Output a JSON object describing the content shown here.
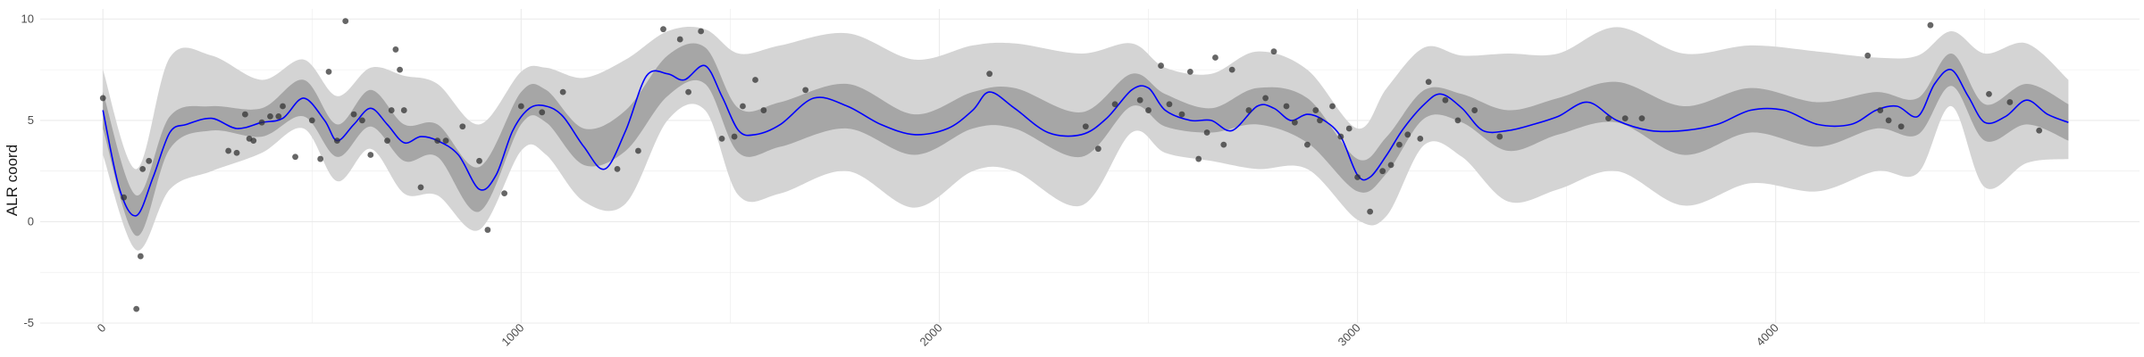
{
  "chart_data": {
    "type": "line",
    "title": "",
    "xlabel": "",
    "ylabel": "ALR coord",
    "xlim": [
      -150,
      4870
    ],
    "ylim": [
      -5,
      10.5
    ],
    "grid": true,
    "legend": "none",
    "x_ticks": [
      {
        "value": 0,
        "label": "0"
      },
      {
        "value": 1000,
        "label": "1000"
      },
      {
        "value": 2000,
        "label": "2000"
      },
      {
        "value": 3000,
        "label": "3000"
      },
      {
        "value": 4000,
        "label": "4000"
      }
    ],
    "y_ticks": [
      {
        "value": -5,
        "label": "-5"
      },
      {
        "value": 0,
        "label": "0"
      },
      {
        "value": 5,
        "label": "5"
      },
      {
        "value": 10,
        "label": "10"
      }
    ],
    "colors": {
      "mean_line": "#0000ff",
      "inner_band": "#a6a6a6",
      "outer_band": "#d4d4d4",
      "points": "#333333",
      "grid": "#ebebeb"
    },
    "series": [
      {
        "role": "mean",
        "x": [
          0,
          40,
          80,
          120,
          160,
          200,
          260,
          320,
          380,
          430,
          480,
          530,
          560,
          600,
          640,
          680,
          720,
          760,
          800,
          850,
          900,
          940,
          980,
          1020,
          1060,
          1100,
          1150,
          1200,
          1250,
          1300,
          1350,
          1390,
          1440,
          1480,
          1520,
          1560,
          1620,
          1700,
          1780,
          1860,
          1940,
          2020,
          2080,
          2120,
          2180,
          2260,
          2340,
          2400,
          2460,
          2500,
          2540,
          2600,
          2650,
          2700,
          2760,
          2800,
          2840,
          2880,
          2920,
          2960,
          3000,
          3030,
          3070,
          3110,
          3160,
          3200,
          3250,
          3300,
          3360,
          3420,
          3480,
          3550,
          3620,
          3700,
          3780,
          3860,
          3940,
          4020,
          4100,
          4180,
          4240,
          4290,
          4340,
          4380,
          4420,
          4460,
          4500,
          4550,
          4600,
          4650,
          4700
        ],
        "y": [
          5.5,
          1.6,
          0.3,
          2.2,
          4.4,
          4.8,
          5.1,
          4.6,
          4.9,
          5.1,
          6.1,
          5.0,
          4.0,
          4.8,
          5.6,
          4.8,
          3.9,
          4.2,
          4.0,
          3.3,
          1.6,
          2.3,
          4.5,
          5.6,
          5.7,
          5.2,
          3.7,
          2.6,
          4.5,
          7.2,
          7.3,
          7.0,
          7.7,
          6.2,
          4.5,
          4.3,
          4.8,
          6.1,
          5.7,
          4.8,
          4.3,
          4.6,
          5.5,
          6.4,
          5.6,
          4.4,
          4.3,
          5.1,
          6.5,
          6.6,
          5.5,
          5.0,
          5.0,
          4.5,
          5.7,
          5.6,
          5.0,
          5.3,
          5.0,
          4.2,
          2.3,
          2.2,
          3.3,
          4.6,
          5.8,
          6.3,
          5.6,
          4.5,
          4.5,
          4.8,
          5.2,
          5.9,
          5.0,
          4.5,
          4.5,
          4.8,
          5.5,
          5.5,
          4.8,
          4.8,
          5.5,
          5.7,
          5.2,
          6.8,
          7.5,
          6.2,
          4.9,
          5.2,
          6.0,
          5.3,
          4.9
        ]
      },
      {
        "role": "band-inner",
        "x": [
          0,
          80,
          160,
          260,
          380,
          480,
          560,
          640,
          720,
          800,
          900,
          1000,
          1060,
          1150,
          1250,
          1350,
          1440,
          1520,
          1620,
          1780,
          1940,
          2080,
          2180,
          2340,
          2460,
          2540,
          2650,
          2760,
          2880,
          3000,
          3070,
          3160,
          3250,
          3360,
          3480,
          3620,
          3780,
          3940,
          4100,
          4240,
          4340,
          4420,
          4500,
          4600,
          4700
        ],
        "upper": [
          6.4,
          1.3,
          5.2,
          5.7,
          5.6,
          7.0,
          4.8,
          6.5,
          4.8,
          4.8,
          2.7,
          6.4,
          6.5,
          4.6,
          5.5,
          8.2,
          8.6,
          5.6,
          5.9,
          6.8,
          5.3,
          6.4,
          6.6,
          5.4,
          7.3,
          6.3,
          5.6,
          6.6,
          6.1,
          3.1,
          4.2,
          6.5,
          6.3,
          5.5,
          6.1,
          6.9,
          5.7,
          6.6,
          5.9,
          6.4,
          6.1,
          8.3,
          5.8,
          6.8,
          5.8
        ],
        "lower": [
          4.6,
          -0.7,
          3.6,
          4.5,
          4.2,
          5.2,
          3.2,
          4.7,
          3.0,
          3.2,
          0.5,
          4.8,
          4.9,
          2.8,
          3.5,
          6.2,
          6.8,
          3.4,
          3.7,
          4.6,
          3.3,
          4.6,
          4.6,
          3.2,
          5.7,
          4.7,
          4.4,
          4.8,
          3.9,
          1.5,
          2.4,
          5.1,
          4.9,
          3.5,
          4.3,
          4.9,
          3.3,
          4.4,
          3.7,
          4.6,
          4.3,
          6.7,
          4.0,
          4.8,
          4.0
        ]
      },
      {
        "role": "band-outer",
        "x": [
          0,
          80,
          160,
          260,
          380,
          480,
          560,
          640,
          720,
          800,
          900,
          1000,
          1060,
          1150,
          1250,
          1350,
          1440,
          1520,
          1620,
          1780,
          1940,
          2080,
          2180,
          2340,
          2460,
          2540,
          2650,
          2760,
          2880,
          3000,
          3070,
          3160,
          3250,
          3360,
          3480,
          3620,
          3780,
          3940,
          4100,
          4240,
          4340,
          4420,
          4500,
          4600,
          4700
        ],
        "upper": [
          7.5,
          2.6,
          8.1,
          8.2,
          7.0,
          8.0,
          6.2,
          7.6,
          7.2,
          6.8,
          4.8,
          7.4,
          7.6,
          7.1,
          8.0,
          9.4,
          9.5,
          8.3,
          8.7,
          9.3,
          8.0,
          8.7,
          8.8,
          8.3,
          8.8,
          7.6,
          7.3,
          8.4,
          7.5,
          4.6,
          6.6,
          8.6,
          8.2,
          8.3,
          8.3,
          9.6,
          8.3,
          8.7,
          8.4,
          8.1,
          8.2,
          9.4,
          8.3,
          8.8,
          7.0
        ],
        "lower": [
          3.3,
          -1.4,
          1.6,
          2.5,
          3.4,
          4.6,
          2.0,
          3.6,
          1.4,
          1.3,
          -0.4,
          3.5,
          3.3,
          1.0,
          0.9,
          5.0,
          5.5,
          1.3,
          1.4,
          2.5,
          0.7,
          2.5,
          2.5,
          0.8,
          4.4,
          3.4,
          3.0,
          2.6,
          2.6,
          0.1,
          0.3,
          3.8,
          3.2,
          1.0,
          1.6,
          2.5,
          0.8,
          1.9,
          1.5,
          2.5,
          2.4,
          5.7,
          1.7,
          2.9,
          3.1
        ]
      },
      {
        "role": "observations",
        "x": [
          0,
          50,
          80,
          90,
          95,
          110,
          300,
          320,
          340,
          350,
          360,
          380,
          400,
          420,
          430,
          460,
          500,
          520,
          540,
          560,
          580,
          600,
          620,
          640,
          680,
          690,
          700,
          710,
          720,
          760,
          800,
          820,
          860,
          900,
          920,
          960,
          1000,
          1050,
          1100,
          1230,
          1280,
          1340,
          1380,
          1400,
          1430,
          1480,
          1510,
          1530,
          1560,
          1580,
          1680,
          2120,
          2350,
          2380,
          2420,
          2480,
          2500,
          2530,
          2550,
          2580,
          2600,
          2620,
          2640,
          2660,
          2680,
          2700,
          2740,
          2780,
          2800,
          2830,
          2850,
          2880,
          2900,
          2910,
          2940,
          2960,
          2980,
          3000,
          3030,
          3060,
          3080,
          3100,
          3120,
          3150,
          3170,
          3210,
          3240,
          3280,
          3340,
          3600,
          3640,
          3680,
          4220,
          4250,
          4270,
          4300,
          4370,
          4510,
          4560,
          4630
        ],
        "y": [
          6.1,
          1.2,
          -4.3,
          -1.7,
          2.6,
          3.0,
          3.5,
          3.4,
          5.3,
          4.1,
          4.0,
          4.9,
          5.2,
          5.2,
          5.7,
          3.2,
          5.0,
          3.1,
          7.4,
          4.0,
          9.9,
          5.3,
          5.0,
          3.3,
          4.0,
          5.5,
          8.5,
          7.5,
          5.5,
          1.7,
          4.0,
          4.0,
          4.7,
          3.0,
          -0.4,
          1.4,
          5.7,
          5.4,
          6.4,
          2.6,
          3.5,
          9.5,
          9.0,
          6.4,
          9.4,
          4.1,
          4.2,
          5.7,
          7.0,
          5.5,
          6.5,
          7.3,
          4.7,
          3.6,
          5.8,
          6.0,
          5.5,
          7.7,
          5.8,
          5.3,
          7.4,
          3.1,
          4.4,
          8.1,
          3.8,
          7.5,
          5.5,
          6.1,
          8.4,
          5.7,
          4.9,
          3.8,
          5.5,
          5.0,
          5.7,
          4.2,
          4.6,
          2.2,
          0.5,
          2.5,
          2.8,
          3.8,
          4.3,
          4.1,
          6.9,
          6.0,
          5.0,
          5.5,
          4.2,
          5.1,
          5.1,
          5.1,
          8.2,
          5.5,
          5.0,
          4.7,
          9.7,
          6.3,
          5.9,
          4.5
        ]
      }
    ]
  }
}
